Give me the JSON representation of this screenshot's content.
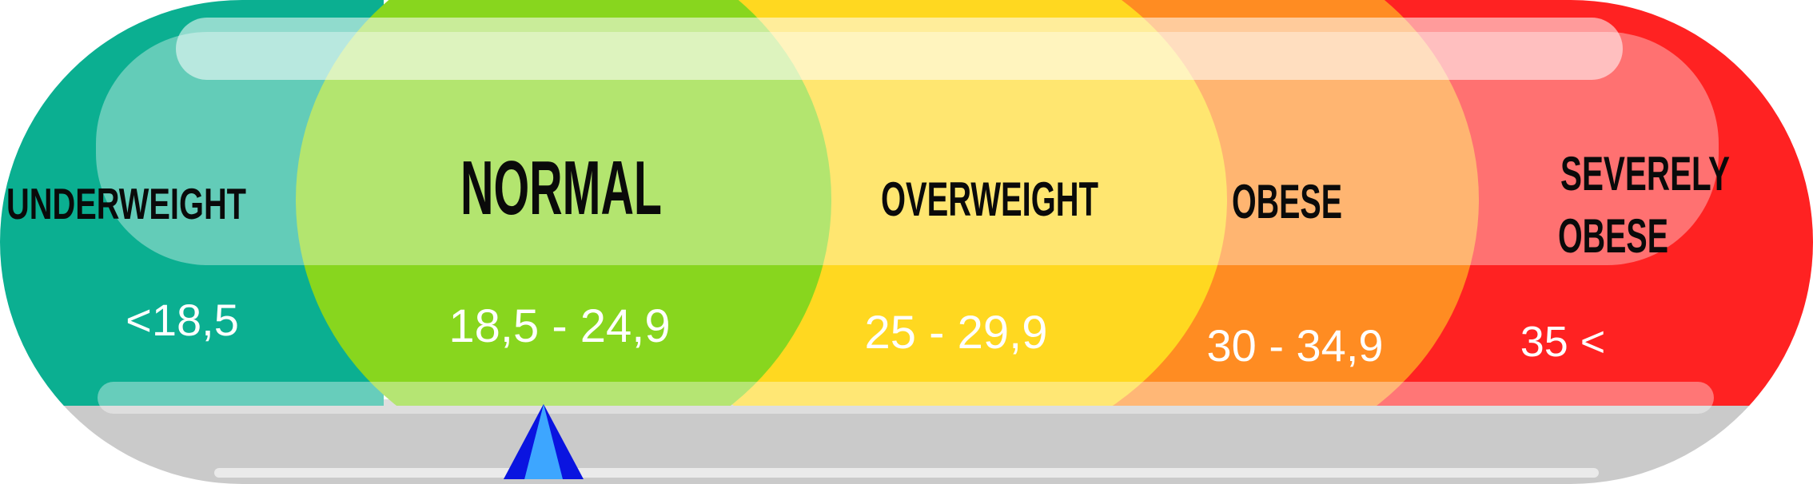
{
  "categories": [
    {
      "label_lines": [
        "UNDERWEIGHT"
      ],
      "range": "<18,5",
      "color": "#0BAF91"
    },
    {
      "label_lines": [
        "NORMAL"
      ],
      "range": "18,5 - 24,9",
      "color": "#88D61E"
    },
    {
      "label_lines": [
        "OVERWEIGHT"
      ],
      "range": "25 - 29,9",
      "color": "#FFD820"
    },
    {
      "label_lines": [
        "OBESE"
      ],
      "range": "30 - 34,9",
      "color": "#FF8C22"
    },
    {
      "label_lines": [
        "SEVERELY",
        "OBESE"
      ],
      "range": "35 <",
      "color": "#FF2222"
    }
  ],
  "base_color": "#CACACA",
  "pointer": {
    "icon": "triangle-pointer-icon",
    "color_light": "#3DA6FF",
    "color_dark": "#0A14E0",
    "value_fraction": 0.3
  }
}
